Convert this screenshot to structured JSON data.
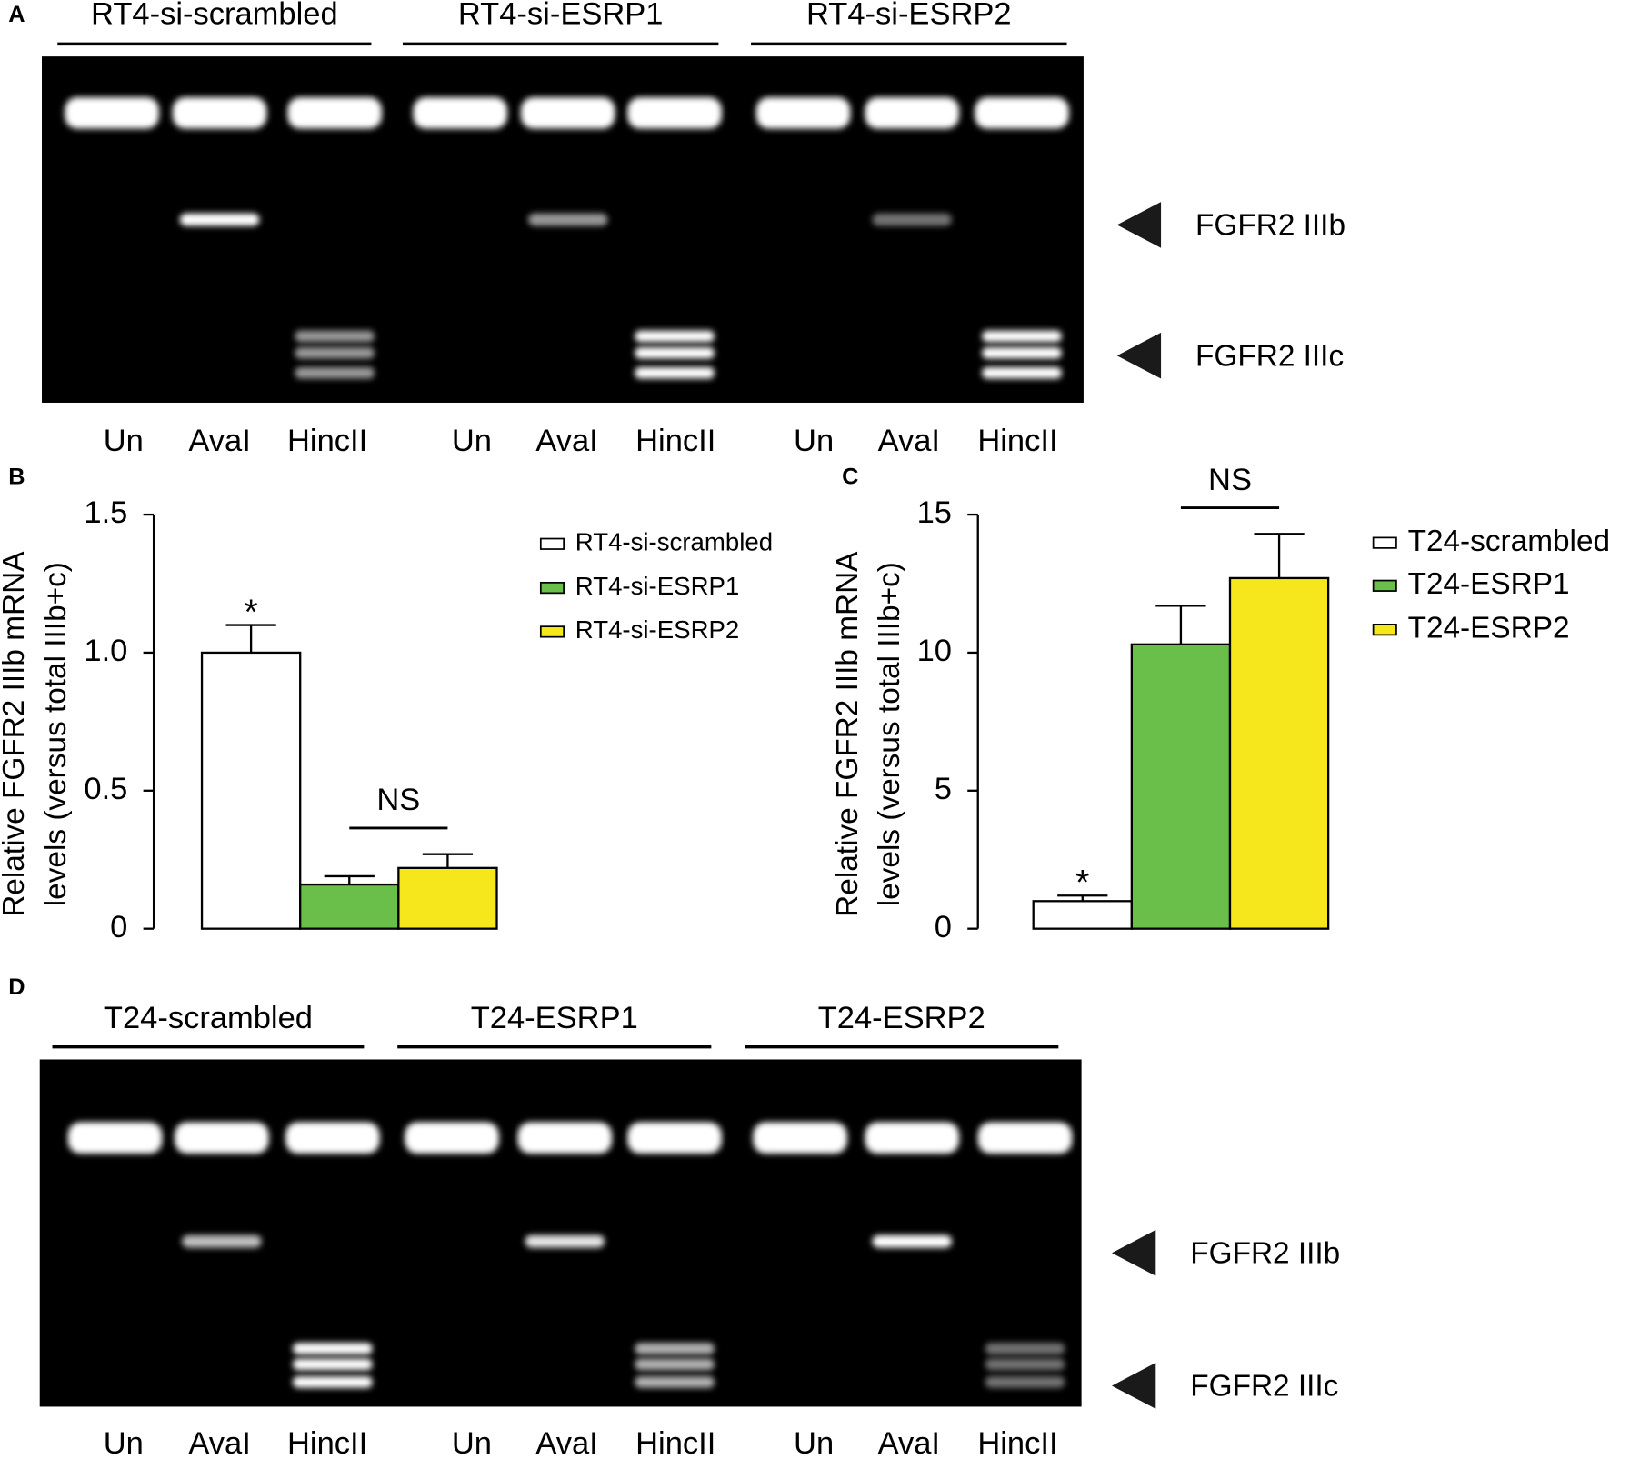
{
  "gels": [
    {
      "panel": "A",
      "groups": [
        "RT4-si-scrambled",
        "RT4-si-ESRP1",
        "RT4-si-ESRP2"
      ],
      "lanes": [
        "Un",
        "AvaI",
        "HincII",
        "Un",
        "AvaI",
        "HincII",
        "Un",
        "AvaI",
        "HincII"
      ],
      "markers": [
        "FGFR2 IIIb",
        "FGFR2 IIIc"
      ]
    },
    {
      "panel": "D",
      "groups": [
        "T24-scrambled",
        "T24-ESRP1",
        "T24-ESRP2"
      ],
      "lanes": [
        "Un",
        "AvaI",
        "HincII",
        "Un",
        "AvaI",
        "HincII",
        "Un",
        "AvaI",
        "HincII"
      ],
      "markers": [
        "FGFR2 IIIb",
        "FGFR2 IIIc"
      ]
    }
  ],
  "chart_data": [
    {
      "type": "bar",
      "panel": "B",
      "ylabel": [
        "Relative FGFR2 IIIb mRNA",
        "levels (versus total IIIb+c)"
      ],
      "ylim": [
        0,
        1.5
      ],
      "yticks": [
        0,
        0.5,
        {
          "value": 1,
          "label": "1.0"
        },
        1.5
      ],
      "series": [
        {
          "name": "RT4-si-scrambled",
          "color": "#ffffff",
          "values": [
            1.0
          ],
          "errors": [
            0.1
          ]
        },
        {
          "name": "RT4-si-ESRP1",
          "color": "#6abf4b",
          "values": [
            0.16
          ],
          "errors": [
            0.03
          ]
        },
        {
          "name": "RT4-si-ESRP2",
          "color": "#f5e71b",
          "values": [
            0.22
          ],
          "errors": [
            0.05
          ]
        }
      ],
      "annotations": [
        "*",
        "NS"
      ]
    },
    {
      "type": "bar",
      "panel": "C",
      "ylabel": [
        "Relative FGFR2 IIIb mRNA",
        "levels (versus total IIIb+c)"
      ],
      "ylim": [
        0,
        15
      ],
      "yticks": [
        0,
        5,
        10,
        15
      ],
      "series": [
        {
          "name": "T24-scrambled",
          "color": "#ffffff",
          "values": [
            1.0
          ],
          "errors": [
            0.2
          ]
        },
        {
          "name": "T24-ESRP1",
          "color": "#6abf4b",
          "values": [
            10.3
          ],
          "errors": [
            1.4
          ]
        },
        {
          "name": "T24-ESRP2",
          "color": "#f5e71b",
          "values": [
            12.7
          ],
          "errors": [
            1.6
          ]
        }
      ],
      "annotations": [
        "*",
        "NS"
      ]
    }
  ]
}
